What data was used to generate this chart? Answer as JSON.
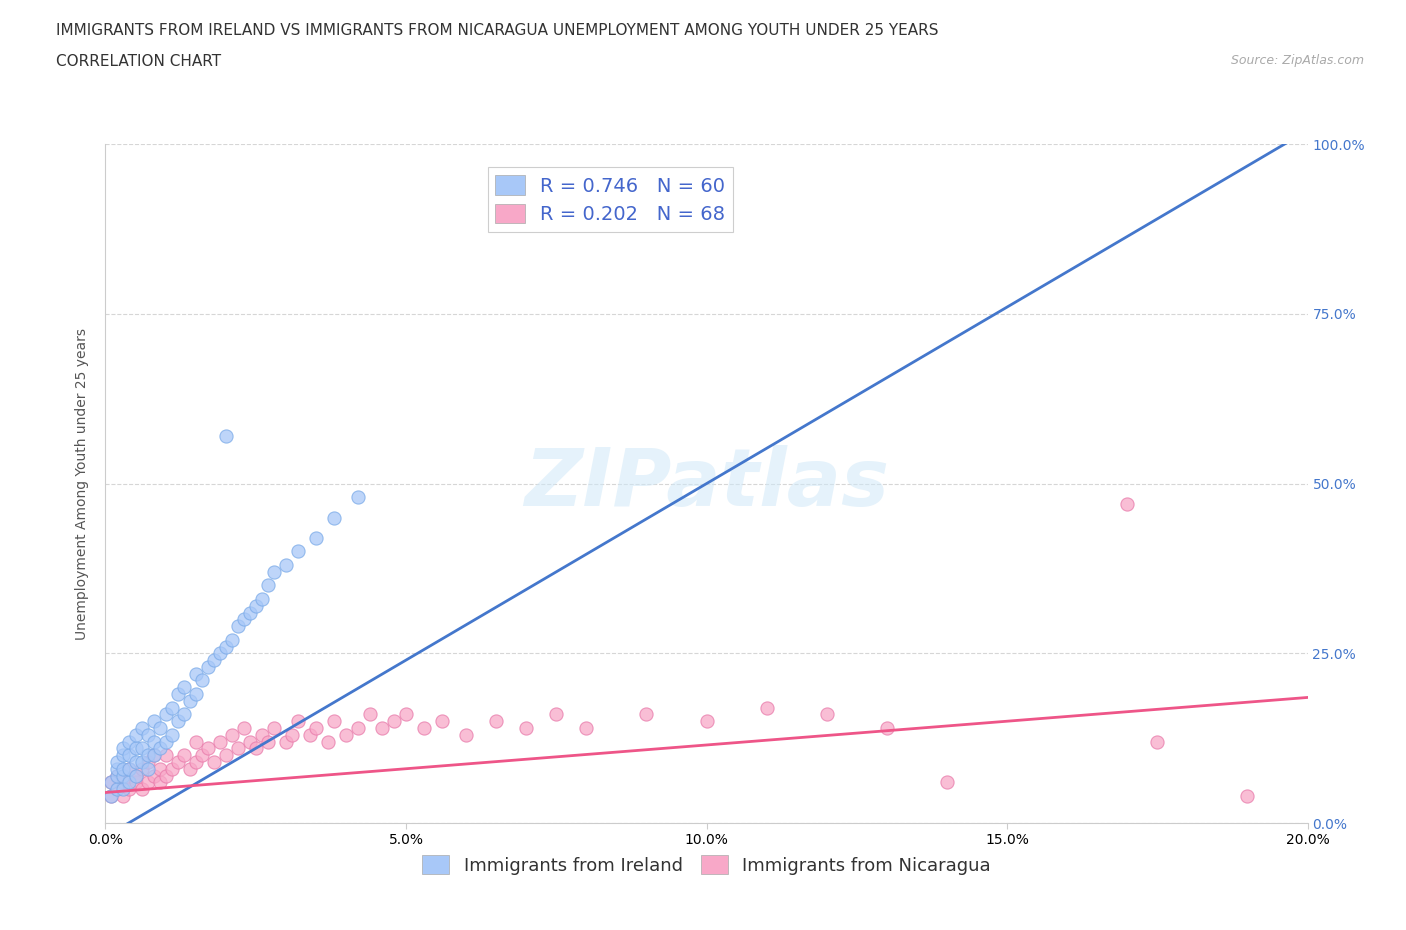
{
  "title_line1": "IMMIGRANTS FROM IRELAND VS IMMIGRANTS FROM NICARAGUA UNEMPLOYMENT AMONG YOUTH UNDER 25 YEARS",
  "title_line2": "CORRELATION CHART",
  "source_text": "Source: ZipAtlas.com",
  "ylabel": "Unemployment Among Youth under 25 years",
  "xlim": [
    0.0,
    0.2
  ],
  "ylim": [
    0.0,
    1.0
  ],
  "xtick_labels": [
    "0.0%",
    "5.0%",
    "10.0%",
    "15.0%",
    "20.0%"
  ],
  "xtick_vals": [
    0.0,
    0.05,
    0.1,
    0.15,
    0.2
  ],
  "ytick_right_labels": [
    "0.0%",
    "25.0%",
    "50.0%",
    "75.0%",
    "100.0%"
  ],
  "ytick_vals": [
    0.0,
    0.25,
    0.5,
    0.75,
    1.0
  ],
  "ireland_color": "#a8c8f8",
  "ireland_edge_color": "#7aaae8",
  "nicaragua_color": "#f8a8c8",
  "nicaragua_edge_color": "#e87aaa",
  "ireland_line_color": "#4477cc",
  "nicaragua_line_color": "#ee5588",
  "ireland_R": 0.746,
  "ireland_N": 60,
  "nicaragua_R": 0.202,
  "nicaragua_N": 68,
  "ireland_line_x0": 0.0,
  "ireland_line_y0": -0.02,
  "ireland_line_x1": 0.2,
  "ireland_line_y1": 1.02,
  "nicaragua_line_x0": 0.0,
  "nicaragua_line_y0": 0.045,
  "nicaragua_line_x1": 0.2,
  "nicaragua_line_y1": 0.185,
  "ireland_scatter_x": [
    0.001,
    0.001,
    0.002,
    0.002,
    0.002,
    0.002,
    0.003,
    0.003,
    0.003,
    0.003,
    0.003,
    0.004,
    0.004,
    0.004,
    0.004,
    0.005,
    0.005,
    0.005,
    0.005,
    0.006,
    0.006,
    0.006,
    0.007,
    0.007,
    0.007,
    0.008,
    0.008,
    0.008,
    0.009,
    0.009,
    0.01,
    0.01,
    0.011,
    0.011,
    0.012,
    0.012,
    0.013,
    0.013,
    0.014,
    0.015,
    0.015,
    0.016,
    0.017,
    0.018,
    0.019,
    0.02,
    0.021,
    0.022,
    0.023,
    0.024,
    0.025,
    0.026,
    0.027,
    0.028,
    0.03,
    0.032,
    0.035,
    0.038,
    0.042,
    0.02
  ],
  "ireland_scatter_y": [
    0.04,
    0.06,
    0.05,
    0.07,
    0.08,
    0.09,
    0.05,
    0.07,
    0.08,
    0.1,
    0.11,
    0.06,
    0.08,
    0.1,
    0.12,
    0.07,
    0.09,
    0.11,
    0.13,
    0.09,
    0.11,
    0.14,
    0.08,
    0.1,
    0.13,
    0.1,
    0.12,
    0.15,
    0.11,
    0.14,
    0.12,
    0.16,
    0.13,
    0.17,
    0.15,
    0.19,
    0.16,
    0.2,
    0.18,
    0.19,
    0.22,
    0.21,
    0.23,
    0.24,
    0.25,
    0.26,
    0.27,
    0.29,
    0.3,
    0.31,
    0.32,
    0.33,
    0.35,
    0.37,
    0.38,
    0.4,
    0.42,
    0.45,
    0.48,
    0.57
  ],
  "nicaragua_scatter_x": [
    0.001,
    0.001,
    0.002,
    0.002,
    0.003,
    0.003,
    0.004,
    0.004,
    0.005,
    0.005,
    0.006,
    0.006,
    0.007,
    0.007,
    0.008,
    0.008,
    0.009,
    0.009,
    0.01,
    0.01,
    0.011,
    0.012,
    0.013,
    0.014,
    0.015,
    0.015,
    0.016,
    0.017,
    0.018,
    0.019,
    0.02,
    0.021,
    0.022,
    0.023,
    0.024,
    0.025,
    0.026,
    0.027,
    0.028,
    0.03,
    0.031,
    0.032,
    0.034,
    0.035,
    0.037,
    0.038,
    0.04,
    0.042,
    0.044,
    0.046,
    0.048,
    0.05,
    0.053,
    0.056,
    0.06,
    0.065,
    0.07,
    0.075,
    0.08,
    0.09,
    0.1,
    0.11,
    0.12,
    0.13,
    0.14,
    0.17,
    0.175,
    0.19
  ],
  "nicaragua_scatter_y": [
    0.04,
    0.06,
    0.05,
    0.07,
    0.04,
    0.06,
    0.05,
    0.08,
    0.06,
    0.07,
    0.05,
    0.08,
    0.06,
    0.09,
    0.07,
    0.1,
    0.06,
    0.08,
    0.07,
    0.1,
    0.08,
    0.09,
    0.1,
    0.08,
    0.09,
    0.12,
    0.1,
    0.11,
    0.09,
    0.12,
    0.1,
    0.13,
    0.11,
    0.14,
    0.12,
    0.11,
    0.13,
    0.12,
    0.14,
    0.12,
    0.13,
    0.15,
    0.13,
    0.14,
    0.12,
    0.15,
    0.13,
    0.14,
    0.16,
    0.14,
    0.15,
    0.16,
    0.14,
    0.15,
    0.13,
    0.15,
    0.14,
    0.16,
    0.14,
    0.16,
    0.15,
    0.17,
    0.16,
    0.14,
    0.06,
    0.47,
    0.12,
    0.04
  ],
  "watermark_text": "ZIPatlas",
  "background_color": "#ffffff",
  "grid_color": "#cccccc",
  "title_fontsize": 11,
  "axis_label_fontsize": 10,
  "tick_fontsize": 10,
  "legend_fontsize": 13,
  "rn_fontsize": 14
}
